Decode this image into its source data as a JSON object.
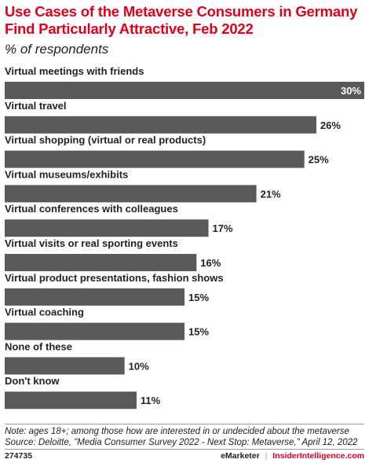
{
  "header": {
    "title": "Use Cases of the Metaverse Consumers in Germany Find Particularly Attractive, Feb 2022",
    "subtitle": "% of respondents"
  },
  "chart_data": {
    "type": "bar",
    "orientation": "horizontal",
    "categories": [
      "Virtual meetings with friends",
      "Virtual travel",
      "Virtual shopping (virtual or real products)",
      "Virtual museums/exhibits",
      "Virtual conferences with colleagues",
      "Virtual visits or real sporting events",
      "Virtual product presentations, fashion shows",
      "Virtual coaching",
      "None of these",
      "Don't know"
    ],
    "values": [
      30,
      26,
      25,
      21,
      17,
      16,
      15,
      15,
      10,
      11
    ],
    "value_labels": [
      "30%",
      "26%",
      "25%",
      "21%",
      "17%",
      "16%",
      "15%",
      "15%",
      "10%",
      "11%"
    ],
    "xlim": [
      0,
      30
    ],
    "grid": false,
    "bar_color": "#595959"
  },
  "footer": {
    "note": "Note: ages 18+; among those how are interested in or undecided about the metaverse",
    "source": "Source: Deloitte, \"Media Consumer Survey 2022 - Next Stop: Metaverse,\" April 12, 2022",
    "chart_id": "274735",
    "brand_emarketer": "eMarketer",
    "brand_separator": "|",
    "brand_insider": "InsiderIntelligence.com"
  },
  "colors": {
    "accent": "#e1001c",
    "bar": "#595959"
  }
}
